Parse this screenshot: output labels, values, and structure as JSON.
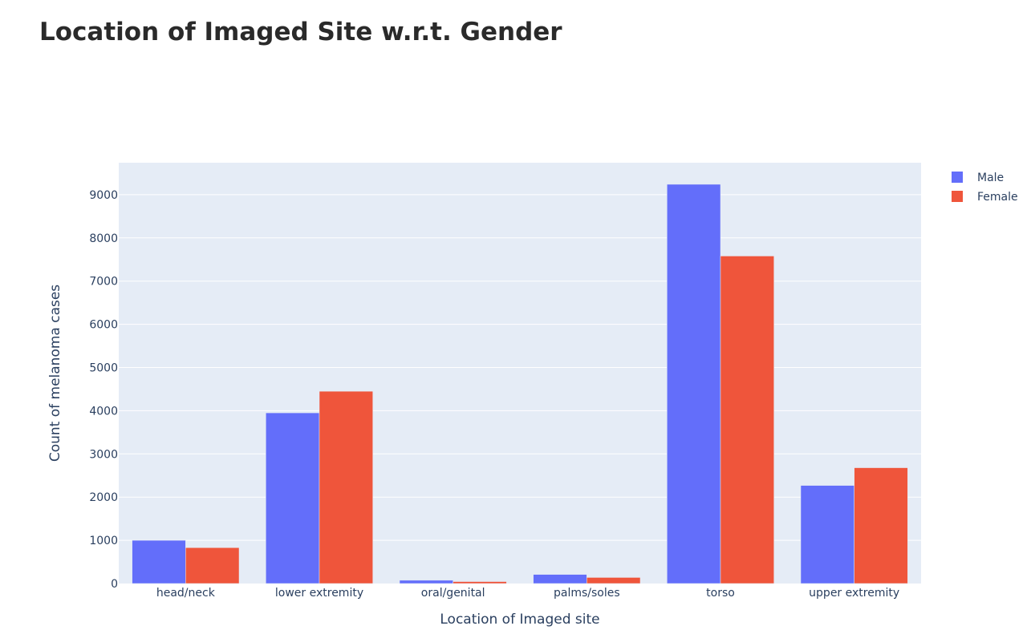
{
  "chart_data": {
    "type": "bar",
    "title": "Location of Imaged Site w.r.t. Gender",
    "xlabel": "Location of Imaged site",
    "ylabel": "Count of melanoma cases",
    "categories": [
      "head/neck",
      "lower extremity",
      "oral/genital",
      "palms/soles",
      "torso",
      "upper extremity"
    ],
    "series": [
      {
        "name": "Male",
        "color": "#636efa",
        "values": [
          1000,
          3950,
          75,
          210,
          9240,
          2270
        ]
      },
      {
        "name": "Female",
        "color": "#ef553b",
        "values": [
          830,
          4450,
          45,
          140,
          7580,
          2680
        ]
      }
    ],
    "yticks": [
      0,
      1000,
      2000,
      3000,
      4000,
      5000,
      6000,
      7000,
      8000,
      9000
    ],
    "ylim": [
      0,
      9740
    ],
    "grid": true,
    "legend_position": "top-right",
    "plot_background": "#e5ecf6"
  }
}
